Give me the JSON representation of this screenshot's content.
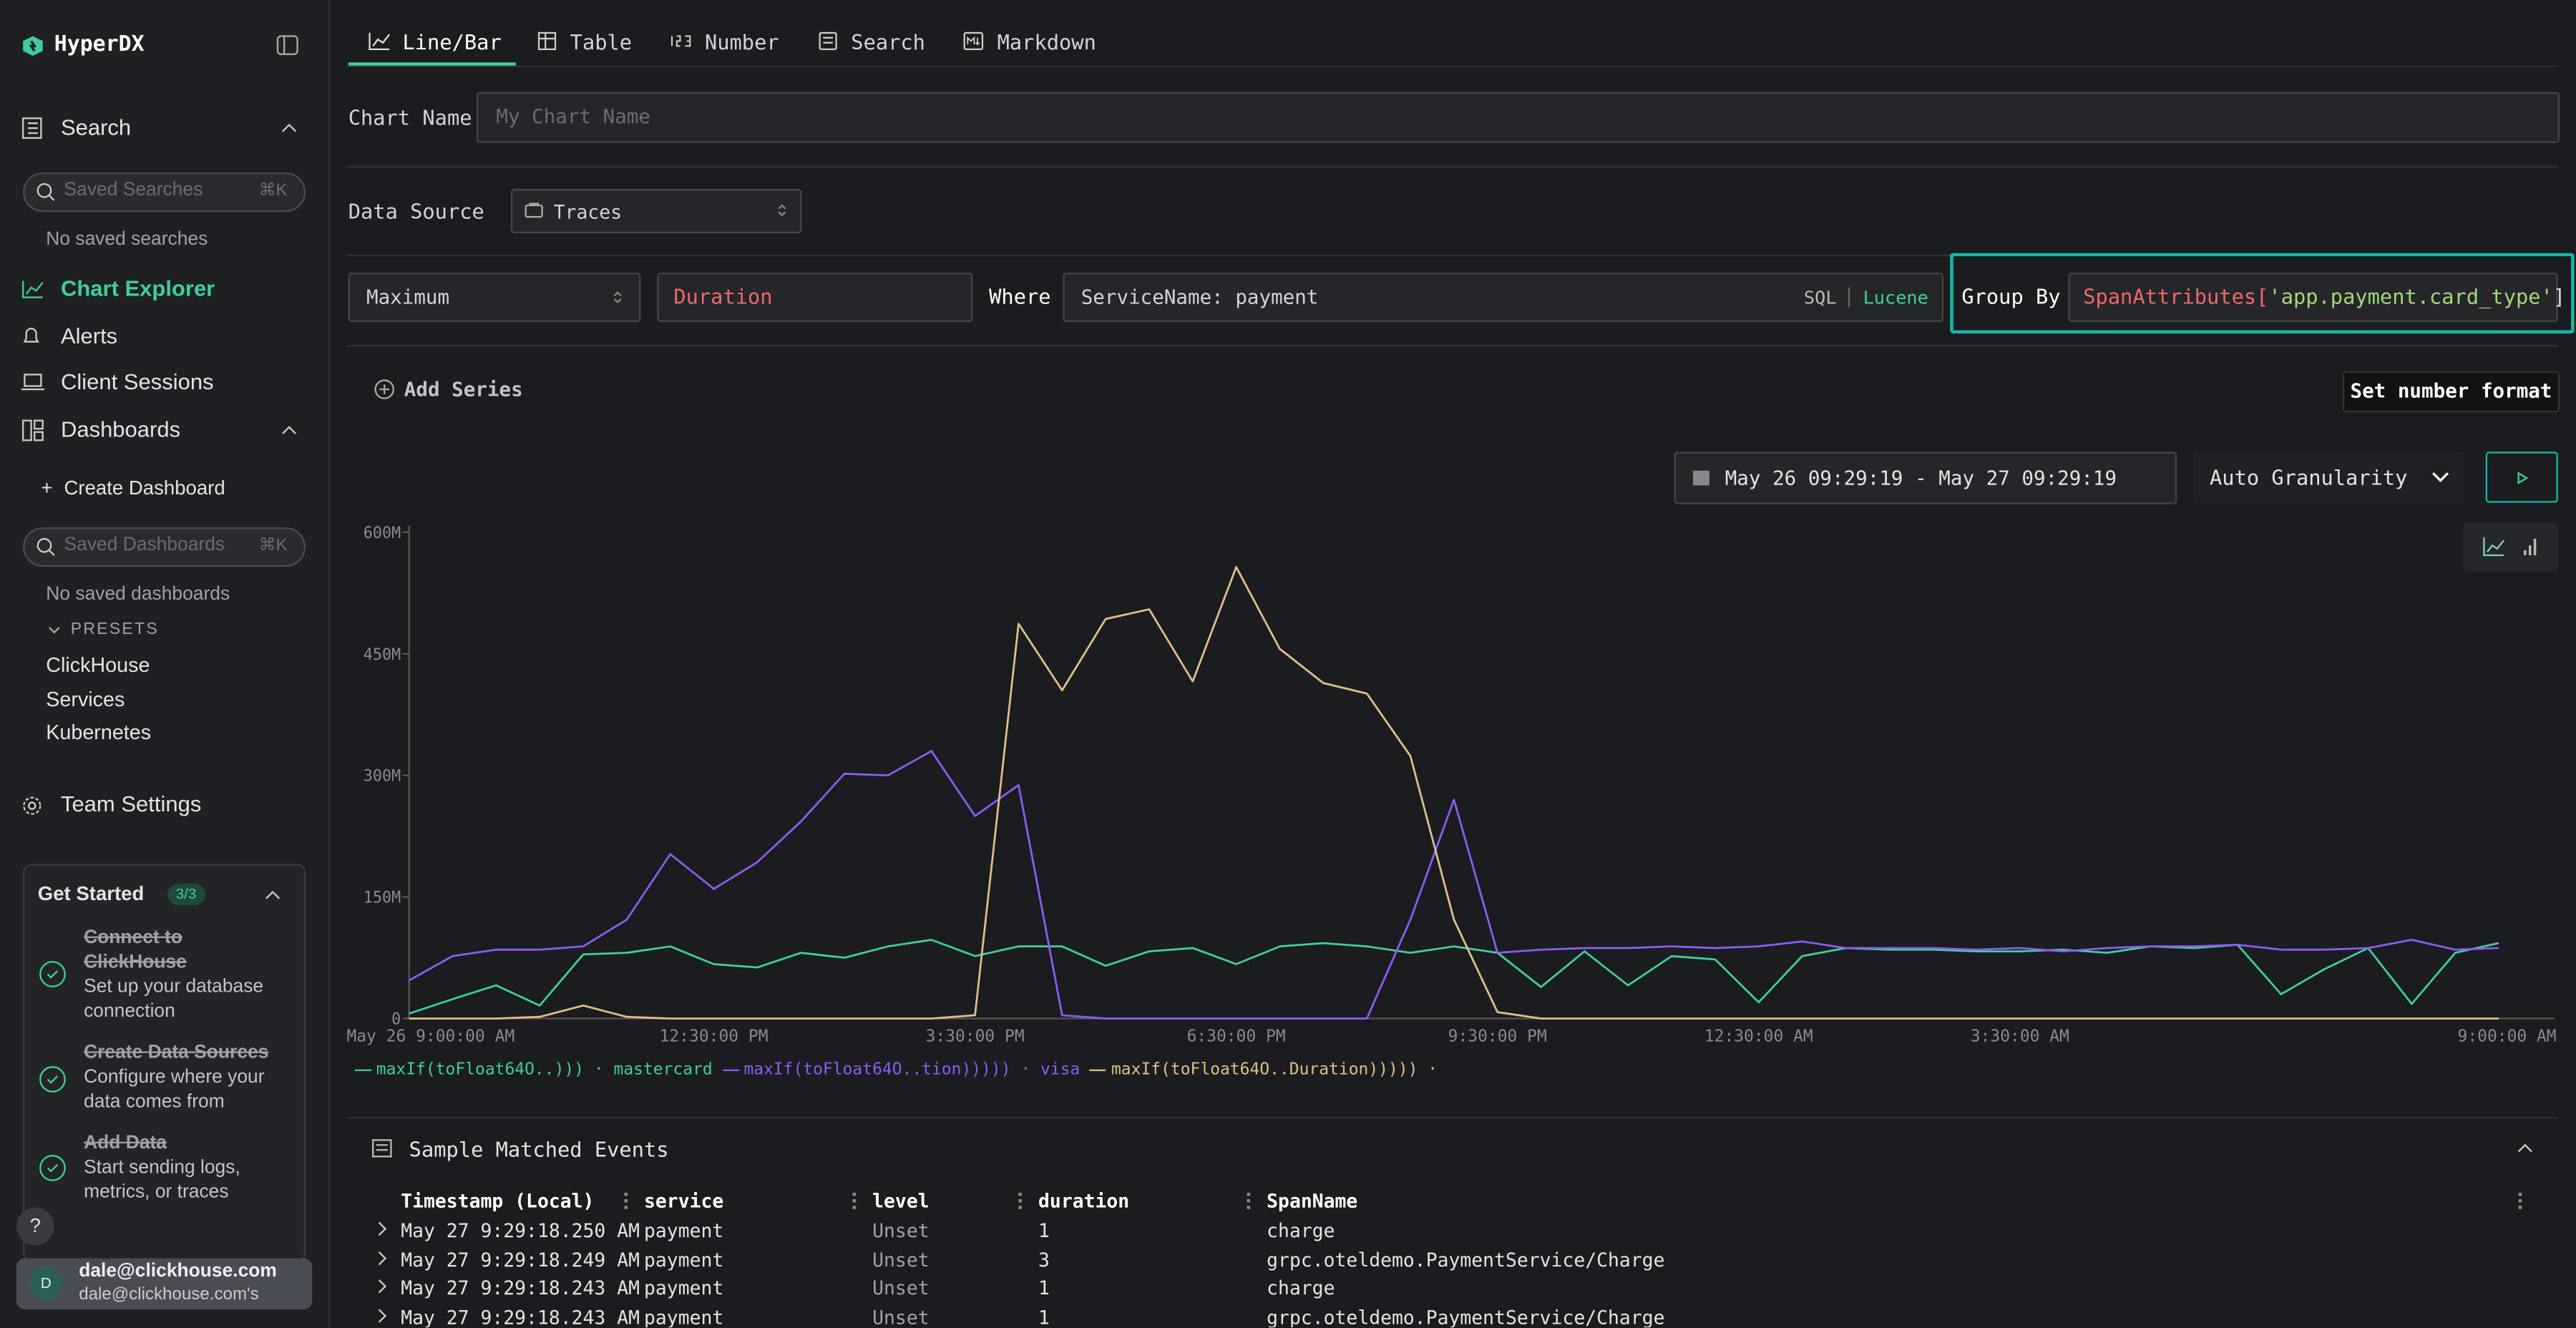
{
  "sidebar": {
    "brand": "HyperDX",
    "search": "Search",
    "saved_searches_placeholder": "Saved Searches",
    "shortcut": "⌘K",
    "no_saved_searches": "No saved searches",
    "chart_explorer": "Chart Explorer",
    "alerts": "Alerts",
    "client_sessions": "Client Sessions",
    "dashboards": "Dashboards",
    "create_dashboard": "Create Dashboard",
    "saved_dashboards_placeholder": "Saved Dashboards",
    "no_saved_dashboards": "No saved dashboards",
    "presets": "PRESETS",
    "preset_items": [
      "ClickHouse",
      "Services",
      "Kubernetes"
    ],
    "team_settings": "Team Settings",
    "get_started": {
      "title": "Get Started",
      "badge": "3/3",
      "steps": [
        {
          "title": "Connect to ClickHouse",
          "text": "Set up your database connection"
        },
        {
          "title": "Create Data Sources",
          "text": "Configure where your data comes from"
        },
        {
          "title": "Add Data",
          "text": "Start sending logs, metrics, or traces"
        }
      ]
    },
    "help": "?",
    "user": {
      "avatar": "D",
      "email": "dale@clickhouse.com",
      "team": "dale@clickhouse.com's"
    }
  },
  "tabs": [
    "Line/Bar",
    "Table",
    "Number",
    "Search",
    "Markdown"
  ],
  "form": {
    "chart_name_label": "Chart Name",
    "chart_name_placeholder": "My Chart Name",
    "data_source_label": "Data Source",
    "data_source": "Traces",
    "aggregation": "Maximum",
    "field": "Duration",
    "where_label": "Where",
    "where": "ServiceName: payment",
    "sql": "SQL",
    "lucene": "Lucene",
    "group_by_label": "Group By",
    "group_by": [
      "SpanAttributes[",
      "'app.payment.card_type'",
      "]"
    ],
    "add_series": "Add Series",
    "number_format": "Set number format",
    "date_range": "May 26 09:29:19 - May 27 09:29:19",
    "granularity": "Auto Granularity"
  },
  "chart_data": {
    "type": "line",
    "categories": [
      "May 26 9:00:00 AM",
      null,
      null,
      null,
      null,
      null,
      null,
      "12:30:00 PM",
      null,
      null,
      null,
      null,
      null,
      "3:30:00 PM",
      null,
      null,
      null,
      null,
      null,
      "6:30:00 PM",
      null,
      null,
      null,
      null,
      null,
      "9:30:00 PM",
      null,
      null,
      null,
      null,
      null,
      "12:30:00 AM",
      null,
      null,
      null,
      null,
      null,
      "3:30:00 AM",
      null,
      null,
      null,
      null,
      null,
      null,
      null,
      null,
      null,
      null,
      "9:00:00 AM"
    ],
    "ylim": [
      0,
      600000000
    ],
    "yticks": [
      0,
      {
        "value": 150000000,
        "label": "150M"
      },
      {
        "value": 300000000,
        "label": "300M"
      },
      {
        "value": 450000000,
        "label": "450M"
      },
      {
        "value": 600000000,
        "label": "600M"
      }
    ],
    "series": [
      {
        "name": "maxIf(toFloat64O..))) · mastercard",
        "color": "#3fcf9c",
        "values": [
          6000000,
          24000000,
          41000000,
          16000000,
          79000000,
          81000000,
          89000000,
          67000000,
          63000000,
          81000000,
          75000000,
          89000000,
          97000000,
          77000000,
          89000000,
          89000000,
          65000000,
          83000000,
          87000000,
          67000000,
          89000000,
          93000000,
          89000000,
          81000000,
          89000000,
          81000000,
          39000000,
          83000000,
          41000000,
          77000000,
          73000000,
          20000000,
          77000000,
          87000000,
          85000000,
          85000000,
          83000000,
          83000000,
          85000000,
          81000000,
          89000000,
          87000000,
          91000000,
          30000000,
          61000000,
          87000000,
          18000000,
          81000000,
          93000000
        ]
      },
      {
        "name": "maxIf(toFloat64O..tion))))) · visa",
        "color": "#8b5cf6",
        "values": [
          47000000,
          77000000,
          85000000,
          85000000,
          89000000,
          122000000,
          203000000,
          160000000,
          193000000,
          243000000,
          302000000,
          300000000,
          330000000,
          250000000,
          288000000,
          4000000,
          0,
          0,
          0,
          0,
          0,
          0,
          0,
          122000000,
          270000000,
          81000000,
          85000000,
          87000000,
          87000000,
          89000000,
          87000000,
          89000000,
          95000000,
          87000000,
          87000000,
          87000000,
          85000000,
          87000000,
          83000000,
          87000000,
          89000000,
          89000000,
          91000000,
          85000000,
          85000000,
          87000000,
          97000000,
          85000000,
          87000000
        ]
      },
      {
        "name": "maxIf(toFloat64O..Duration))))) ·",
        "color": "#e0c089",
        "values": [
          0,
          0,
          0,
          2000000,
          16000000,
          2000000,
          0,
          0,
          0,
          0,
          0,
          0,
          0,
          4000000,
          487000000,
          405000000,
          493000000,
          505000000,
          416000000,
          557000000,
          456000000,
          414000000,
          401000000,
          324000000,
          122000000,
          8000000,
          0,
          0,
          0,
          0,
          0,
          0,
          0,
          0,
          0,
          0,
          0,
          0,
          0,
          0,
          0,
          0,
          0,
          0,
          0,
          0,
          0,
          0,
          0
        ]
      }
    ]
  },
  "events": {
    "title": "Sample Matched Events",
    "columns": [
      "Timestamp (Local)",
      "service",
      "level",
      "duration",
      "SpanName"
    ],
    "rows": [
      [
        "May 27 9:29:18.250 AM",
        "payment",
        "Unset",
        1,
        "charge"
      ],
      [
        "May 27 9:29:18.249 AM",
        "payment",
        "Unset",
        3,
        "grpc.oteldemo.PaymentService/Charge"
      ],
      [
        "May 27 9:29:18.243 AM",
        "payment",
        "Unset",
        1,
        "charge"
      ],
      [
        "May 27 9:29:18.243 AM",
        "payment",
        "Unset",
        1,
        "grpc.oteldemo.PaymentService/Charge"
      ]
    ]
  }
}
